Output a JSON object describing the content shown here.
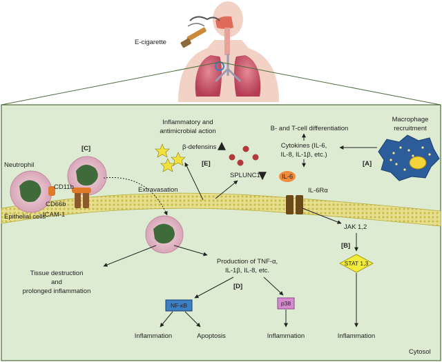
{
  "top": {
    "ecig_label": "E-cigarette"
  },
  "cells": {
    "neutrophil": "Neutrophil",
    "cd11b": "CD11b",
    "cd66b": "CD66b",
    "icam": "ICAM-1",
    "epithelial": "Epithelial cells",
    "extravasation": "Extravasation"
  },
  "labels": {
    "a": "[A]",
    "b": "[B]",
    "c": "[C]",
    "d": "[D]",
    "e": "[E]"
  },
  "upper": {
    "inflammatory_1": "Inflammatory and",
    "inflammatory_2": "antimicrobial action",
    "bt_diff": "B- and T-cell differentiation",
    "cytokines_1": "Cytokines (IL-6,",
    "cytokines_2": "IL-8, IL-1β, etc.)",
    "macrophage_1": "Macrophage",
    "macrophage_2": "recruitment",
    "defensins": "β-defensins",
    "splunc1": "SPLUNC1",
    "il6": "IL-6",
    "il6ra": "IL-6Rα"
  },
  "lower": {
    "jak": "JAK 1,2",
    "stat": "STAT 1,3",
    "tissue_1": "Tissue destruction",
    "tissue_2": "and",
    "tissue_3": "prolonged inflammation",
    "production_1": "Production of TNF-α,",
    "production_2": "IL-1β, IL-8, etc.",
    "nfkb": "NF-κB",
    "p38": "p38",
    "inflammation_1": "Inflammation",
    "apoptosis": "Apoptosis",
    "inflammation_2": "Inflammation",
    "inflammation_3": "Inflammation",
    "cytosol": "Cytosol"
  },
  "colors": {
    "panel": "#dcebd2",
    "membrane": "#d9d27a",
    "il6": "#f08a3c",
    "nfkb": "#3d7fc4",
    "p38": "#d58ad0",
    "stat": "#f4ec3a",
    "up_arrow": "#4ba3d9",
    "down_arrow": "#d9342b"
  }
}
